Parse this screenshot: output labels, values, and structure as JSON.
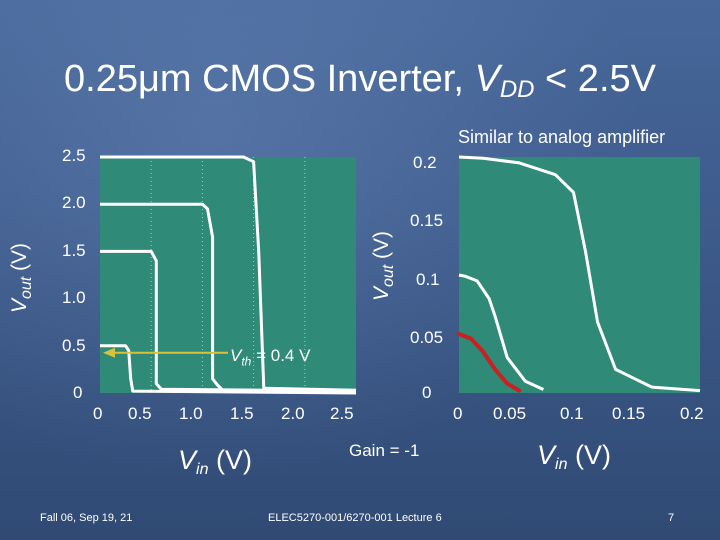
{
  "slide": {
    "title_main": "0.25μm CMOS Inverter, ",
    "title_var": "V",
    "title_sub": "DD",
    "title_tail": " < 2.5V",
    "note_right": "Similar to analog amplifier",
    "gain_label": "Gain = -1",
    "vth_label_v": "V",
    "vth_label_sub": "th",
    "vth_label_tail": " = 0.4 V",
    "footer_left": "Fall 06, Sep 19, 21",
    "footer_center": "ELEC5270-001/6270-001 Lecture 6",
    "page_number": "7"
  },
  "colors": {
    "plot_bg": "#2f8a78",
    "curve": "#ffffff",
    "gain_segment": "#cc1f1f",
    "arrow": "#d8c23a"
  },
  "chart_data": [
    {
      "type": "line",
      "xlabel": {
        "main": "V",
        "sub": "in",
        "unit": " (V)"
      },
      "ylabel": {
        "main": "V",
        "sub": "out",
        "unit": " (V)"
      },
      "xlim": [
        0,
        2.5
      ],
      "ylim": [
        0,
        2.5
      ],
      "x_ticks": [
        "0",
        "0.5",
        "1.0",
        "1.5",
        "2.0",
        "2.5"
      ],
      "y_ticks": [
        "0",
        "0.5",
        "1.0",
        "1.5",
        "2.0",
        "2.5"
      ],
      "grid": "dotted vertical",
      "series": [
        {
          "x": [
            0,
            1.0,
            1.05,
            1.1,
            1.1,
            1.15,
            1.2,
            2.5
          ],
          "y": [
            2.0,
            2.0,
            1.95,
            1.65,
            0.15,
            0.08,
            0.03,
            0.02
          ]
        },
        {
          "x": [
            0,
            0.5,
            0.55,
            0.55,
            0.6,
            2.5
          ],
          "y": [
            1.5,
            1.5,
            1.4,
            0.1,
            0.04,
            0.02
          ]
        },
        {
          "x": [
            0,
            1.4,
            1.5,
            1.55,
            1.6,
            2.5
          ],
          "y": [
            2.5,
            2.5,
            2.45,
            1.5,
            0.05,
            0.03
          ]
        },
        {
          "x": [
            0,
            0.25,
            0.28,
            0.3,
            0.32,
            2.5
          ],
          "y": [
            0.5,
            0.5,
            0.45,
            0.15,
            0.02,
            0.0
          ]
        }
      ],
      "annotation": {
        "text": "Vth = 0.4 V",
        "target_x": 0.0,
        "target_y": 0.5
      }
    },
    {
      "type": "line",
      "xlabel": {
        "main": "V",
        "sub": "in",
        "unit": " (V)"
      },
      "ylabel": {
        "main": "V",
        "sub": "out",
        "unit": " (V)"
      },
      "xlim": [
        0,
        0.2
      ],
      "ylim": [
        0,
        0.2
      ],
      "x_ticks": [
        "0",
        "0.05",
        "0.1",
        "0.15",
        "0.2"
      ],
      "y_ticks": [
        "0",
        "0.05",
        "0.1",
        "0.15",
        "0.2"
      ],
      "series": [
        {
          "x": [
            0,
            0.02,
            0.05,
            0.08,
            0.095,
            0.105,
            0.115,
            0.13,
            0.16,
            0.2
          ],
          "y": [
            0.2,
            0.199,
            0.195,
            0.185,
            0.17,
            0.12,
            0.06,
            0.02,
            0.005,
            0.002
          ]
        },
        {
          "x": [
            0,
            0.005,
            0.015,
            0.025,
            0.03,
            0.04,
            0.055,
            0.07
          ],
          "y": [
            0.1,
            0.099,
            0.095,
            0.08,
            0.065,
            0.03,
            0.01,
            0.003
          ]
        }
      ],
      "gain_segment": {
        "x": [
          0.0,
          0.01,
          0.02,
          0.03,
          0.04,
          0.05
        ],
        "y": [
          0.05,
          0.046,
          0.035,
          0.02,
          0.008,
          0.002
        ]
      }
    }
  ]
}
